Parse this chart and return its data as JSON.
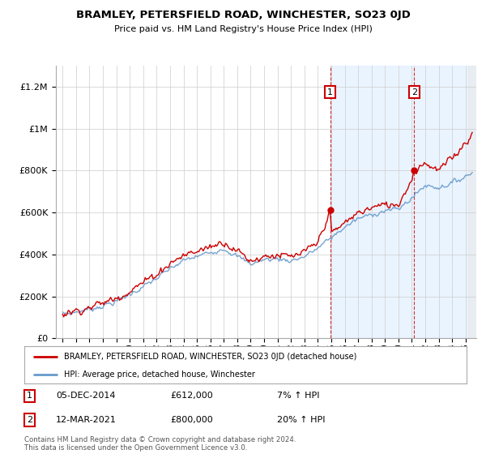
{
  "title": "BRAMLEY, PETERSFIELD ROAD, WINCHESTER, SO23 0JD",
  "subtitle": "Price paid vs. HM Land Registry's House Price Index (HPI)",
  "legend_line1": "BRAMLEY, PETERSFIELD ROAD, WINCHESTER, SO23 0JD (detached house)",
  "legend_line2": "HPI: Average price, detached house, Winchester",
  "footnote": "Contains HM Land Registry data © Crown copyright and database right 2024.\nThis data is licensed under the Open Government Licence v3.0.",
  "annotation1_label": "1",
  "annotation1_date": "05-DEC-2014",
  "annotation1_price": "£612,000",
  "annotation1_hpi": "7% ↑ HPI",
  "annotation2_label": "2",
  "annotation2_date": "12-MAR-2021",
  "annotation2_price": "£800,000",
  "annotation2_hpi": "20% ↑ HPI",
  "sale1_x": 2014.92,
  "sale1_y": 612000,
  "sale2_x": 2021.18,
  "sale2_y": 800000,
  "price_line_color": "#cc0000",
  "hpi_line_color": "#6699cc",
  "hpi_fill_color": "#ddeeff",
  "shaded_region_start": 2014.92,
  "ylim_min": 0,
  "ylim_max": 1300000,
  "xlim_min": 1994.5,
  "xlim_max": 2025.8,
  "yticks": [
    0,
    200000,
    400000,
    600000,
    800000,
    1000000,
    1200000
  ],
  "ytick_labels": [
    "£0",
    "£200K",
    "£400K",
    "£600K",
    "£800K",
    "£1M",
    "£1.2M"
  ],
  "xticks": [
    1995,
    1996,
    1997,
    1998,
    1999,
    2000,
    2001,
    2002,
    2003,
    2004,
    2005,
    2006,
    2007,
    2008,
    2009,
    2010,
    2011,
    2012,
    2013,
    2014,
    2015,
    2016,
    2017,
    2018,
    2019,
    2020,
    2021,
    2022,
    2023,
    2024,
    2025
  ],
  "background_color": "#ffffff",
  "grid_color": "#cccccc",
  "annotation_box_color": "#cc0000"
}
